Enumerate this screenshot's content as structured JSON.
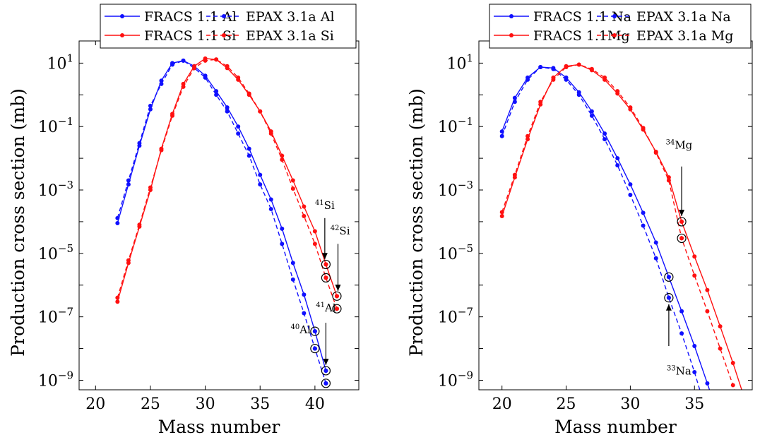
{
  "chart_data": [
    {
      "type": "line",
      "xlabel": "Mass number",
      "ylabel": "Production cross section (mb)",
      "xlim": [
        18.5,
        44
      ],
      "ylog": true,
      "ylim": [
        5e-10,
        50
      ],
      "xticks": [
        20,
        25,
        30,
        35,
        40
      ],
      "yticks": [
        {
          "mant": "10",
          "exp": "1",
          "value": 10
        },
        {
          "mant": "10",
          "exp": "−1",
          "value": 0.1
        },
        {
          "mant": "10",
          "exp": "−3",
          "value": 0.001
        },
        {
          "mant": "10",
          "exp": "−5",
          "value": 1e-05
        },
        {
          "mant": "10",
          "exp": "−7",
          "value": 1e-07
        },
        {
          "mant": "10",
          "exp": "−9",
          "value": 1e-09
        }
      ],
      "legend": {
        "position": "top",
        "columns": 2
      },
      "colors": {
        "blue": "#1010ff",
        "red": "#ff1010"
      },
      "series": [
        {
          "name": "FRACS 1.1 Al",
          "color": "#1010ff",
          "dash": false,
          "x": [
            22,
            23,
            24,
            25,
            26,
            27,
            28,
            29,
            30,
            31,
            32,
            33,
            34,
            35,
            36,
            37,
            38,
            39,
            40,
            41
          ],
          "y": [
            9e-05,
            0.0015,
            0.025,
            0.35,
            2.8,
            10,
            12,
            8,
            4,
            1.3,
            0.4,
            0.1,
            0.02,
            0.003,
            0.0005,
            6e-05,
            5e-06,
            5e-07,
            3.5e-08,
            2e-09
          ]
        },
        {
          "name": "EPAX 3.1a Al",
          "color": "#1010ff",
          "dash": true,
          "x": [
            22,
            23,
            24,
            25,
            26,
            27,
            28,
            29,
            30,
            31,
            32,
            33,
            34,
            35,
            36,
            37,
            38,
            39,
            40,
            41
          ],
          "y": [
            0.00013,
            0.002,
            0.03,
            0.45,
            2.2,
            9,
            12,
            7,
            3.5,
            1,
            0.3,
            0.06,
            0.012,
            0.0015,
            0.00025,
            2e-05,
            1.5e-06,
            1.3e-07,
            1e-08,
            8e-10
          ]
        },
        {
          "name": "FRACS 1.1 Si",
          "color": "#ff1010",
          "dash": false,
          "x": [
            22,
            23,
            24,
            25,
            26,
            27,
            28,
            29,
            30,
            31,
            32,
            33,
            34,
            35,
            36,
            37,
            38,
            39,
            40,
            41,
            42
          ],
          "y": [
            3e-07,
            5e-06,
            7e-05,
            0.001,
            0.02,
            0.25,
            2.2,
            8,
            14,
            13,
            7,
            3,
            1,
            0.3,
            0.07,
            0.012,
            0.002,
            0.0003,
            5e-05,
            4.5e-06,
            4.5e-07
          ]
        },
        {
          "name": "EPAX 3.1a Si",
          "color": "#ff1010",
          "dash": true,
          "x": [
            22,
            23,
            24,
            25,
            26,
            27,
            28,
            29,
            30,
            31,
            32,
            33,
            34,
            35,
            36,
            37,
            38,
            39,
            40,
            41,
            42
          ],
          "y": [
            4e-07,
            6e-06,
            8e-05,
            0.0012,
            0.018,
            0.22,
            1.8,
            7,
            12,
            13,
            8,
            3.5,
            1.1,
            0.3,
            0.06,
            0.009,
            0.0011,
            0.00015,
            2e-05,
            1.7e-06,
            1.8e-07
          ]
        }
      ],
      "highlighted": [
        {
          "x": 41,
          "y": 4.5e-06,
          "color": "#ff1010"
        },
        {
          "x": 41,
          "y": 1.7e-06,
          "color": "#ff1010"
        },
        {
          "x": 42,
          "y": 4.5e-07,
          "color": "#ff1010"
        },
        {
          "x": 42,
          "y": 1.8e-07,
          "color": "#ff1010"
        },
        {
          "x": 40,
          "y": 3.5e-08,
          "color": "#1010ff"
        },
        {
          "x": 40,
          "y": 1e-08,
          "color": "#1010ff"
        },
        {
          "x": 41,
          "y": 2e-09,
          "color": "#1010ff"
        },
        {
          "x": 41,
          "y": 8e-10,
          "color": "#1010ff"
        }
      ],
      "annotations": [
        {
          "sup": "41",
          "base": "Si",
          "x": 40.9,
          "y": 0.00025,
          "arrow": [
            [
              40.9,
              0.00013
            ],
            [
              40.9,
              6.5e-06
            ]
          ]
        },
        {
          "sup": "42",
          "base": "Si",
          "x": 42.3,
          "y": 4e-05,
          "arrow": [
            [
              42.1,
              2e-05
            ],
            [
              42.1,
              6.5e-07
            ]
          ]
        },
        {
          "sup": "40",
          "base": "Al",
          "x": 38.7,
          "y": 3e-08
        },
        {
          "sup": "41",
          "base": "Al",
          "x": 41,
          "y": 1.5e-07,
          "arrow": [
            [
              41,
              6.5e-08
            ],
            [
              41,
              3e-09
            ]
          ]
        }
      ]
    },
    {
      "type": "line",
      "xlabel": "Mass number",
      "ylabel": "Production cross section (mb)",
      "xlim": [
        18.2,
        39.5
      ],
      "ylog": true,
      "ylim": [
        5e-10,
        50
      ],
      "xticks": [
        20,
        25,
        30,
        35
      ],
      "yticks": [
        {
          "mant": "10",
          "exp": "1",
          "value": 10
        },
        {
          "mant": "10",
          "exp": "−1",
          "value": 0.1
        },
        {
          "mant": "10",
          "exp": "−3",
          "value": 0.001
        },
        {
          "mant": "10",
          "exp": "−5",
          "value": 1e-05
        },
        {
          "mant": "10",
          "exp": "−7",
          "value": 1e-07
        },
        {
          "mant": "10",
          "exp": "−9",
          "value": 1e-09
        }
      ],
      "legend": {
        "position": "top",
        "columns": 2
      },
      "colors": {
        "blue": "#1010ff",
        "red": "#ff1010"
      },
      "series": [
        {
          "name": "FRACS 1.1 Na",
          "color": "#1010ff",
          "dash": false,
          "x": [
            20,
            21,
            22,
            23,
            24,
            25,
            26,
            27,
            28,
            29,
            30,
            31,
            32,
            33,
            34,
            35,
            36,
            37
          ],
          "y": [
            0.07,
            0.8,
            3.5,
            7.5,
            7,
            3.5,
            1.2,
            0.3,
            0.06,
            0.01,
            0.0015,
            0.00019,
            2.2e-05,
            1.8e-06,
            1.5e-07,
            1.2e-08,
            8e-10,
            5e-11
          ]
        },
        {
          "name": "EPAX 3.1a Na",
          "color": "#1010ff",
          "dash": true,
          "x": [
            20,
            21,
            22,
            23,
            24,
            25,
            26,
            27,
            28,
            29,
            30,
            31,
            32,
            33,
            34,
            35,
            36
          ],
          "y": [
            0.05,
            0.6,
            3,
            7.5,
            6.5,
            3,
            1,
            0.22,
            0.04,
            0.006,
            0.0007,
            7.5e-05,
            7e-06,
            4e-07,
            3e-08,
            1.8e-09,
            8e-11
          ]
        },
        {
          "name": "FRACS 1.1Mg",
          "color": "#ff1010",
          "dash": false,
          "x": [
            20,
            21,
            22,
            23,
            24,
            25,
            26,
            27,
            28,
            29,
            30,
            31,
            32,
            33,
            34,
            35,
            36,
            37,
            38,
            39
          ],
          "y": [
            0.00015,
            0.0025,
            0.04,
            0.5,
            3.5,
            8,
            9,
            6,
            3,
            1.1,
            0.35,
            0.08,
            0.016,
            0.0025,
            0.0001,
            8e-06,
            7e-07,
            5e-08,
            3.5e-09,
            2e-10
          ]
        },
        {
          "name": "EPAX 3.1a Mg",
          "color": "#ff1010",
          "dash": true,
          "x": [
            20,
            21,
            22,
            23,
            24,
            25,
            26,
            27,
            28,
            29,
            30,
            31,
            32,
            33,
            34,
            35,
            36,
            37,
            38,
            39
          ],
          "y": [
            0.0002,
            0.003,
            0.05,
            0.6,
            3,
            7.5,
            9,
            6.5,
            3.5,
            1.3,
            0.4,
            0.09,
            0.015,
            0.002,
            3e-05,
            2e-06,
            1.5e-07,
            1e-08,
            7e-10,
            3e-11
          ]
        }
      ],
      "highlighted": [
        {
          "x": 34,
          "y": 0.0001,
          "color": "#ff1010"
        },
        {
          "x": 34,
          "y": 3e-05,
          "color": "#ff1010"
        },
        {
          "x": 33,
          "y": 1.8e-06,
          "color": "#1010ff"
        },
        {
          "x": 33,
          "y": 4e-07,
          "color": "#1010ff"
        }
      ],
      "annotations": [
        {
          "sup": "34",
          "base": "Mg",
          "x": 33.8,
          "y": 0.02,
          "arrow": [
            [
              34,
              0.0055
            ],
            [
              34,
              0.00015
            ]
          ]
        },
        {
          "sup": "33",
          "base": "Na",
          "x": 33.8,
          "y": 1.5e-09,
          "arrow": [
            [
              33,
              1.2e-08
            ],
            [
              33,
              2.5e-07
            ]
          ]
        }
      ]
    }
  ]
}
